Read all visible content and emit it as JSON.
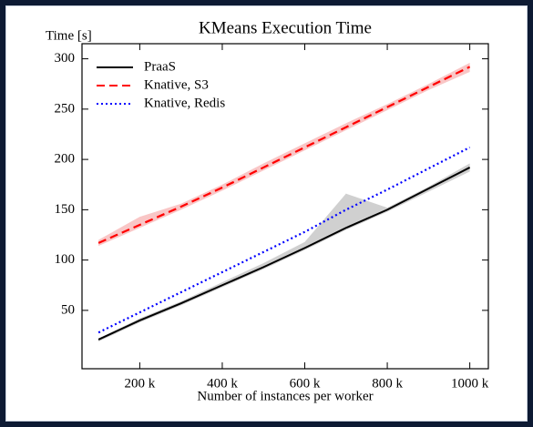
{
  "chart_data": {
    "type": "line",
    "title": "KMeans Execution Time",
    "ylabel": "Time [s]",
    "xlabel": "Number of instances per worker",
    "x": [
      100000,
      200000,
      300000,
      400000,
      500000,
      600000,
      700000,
      800000,
      900000,
      1000000
    ],
    "series": [
      {
        "name": "PraaS",
        "color": "#000000",
        "style": "solid",
        "values": [
          21,
          40,
          57,
          75,
          93,
          112,
          132,
          150,
          171,
          192
        ],
        "lower": [
          19,
          38,
          55,
          73,
          91,
          110,
          130,
          148,
          168,
          188
        ],
        "upper": [
          22,
          42,
          59,
          78,
          97,
          118,
          166,
          152,
          173,
          196
        ],
        "band_color": "#b0b0b0"
      },
      {
        "name": "Knative, S3",
        "color": "#ff0000",
        "style": "dashed",
        "values": [
          117,
          135,
          153,
          172,
          192,
          212,
          232,
          252,
          272,
          292
        ],
        "lower": [
          114,
          132,
          150,
          169,
          189,
          209,
          229,
          249,
          269,
          287
        ],
        "upper": [
          120,
          143,
          156,
          175,
          196,
          216,
          236,
          255,
          275,
          296
        ],
        "band_color": "#f5a0a0"
      },
      {
        "name": "Knative, Redis",
        "color": "#0000ff",
        "style": "dotted",
        "values": [
          28,
          48,
          68,
          88,
          108,
          128,
          150,
          170,
          191,
          212
        ]
      }
    ],
    "xlim": [
      60000,
      1045000
    ],
    "xticks": [
      {
        "value": 200000,
        "label": "200 k"
      },
      {
        "value": 400000,
        "label": "400 k"
      },
      {
        "value": 600000,
        "label": "600 k"
      },
      {
        "value": 800000,
        "label": "800 k"
      },
      {
        "value": 1000000,
        "label": "1000 k"
      }
    ],
    "ylim": [
      -8,
      315
    ],
    "yticks": [
      50,
      100,
      150,
      200,
      250,
      300
    ],
    "legend": "upper left"
  }
}
